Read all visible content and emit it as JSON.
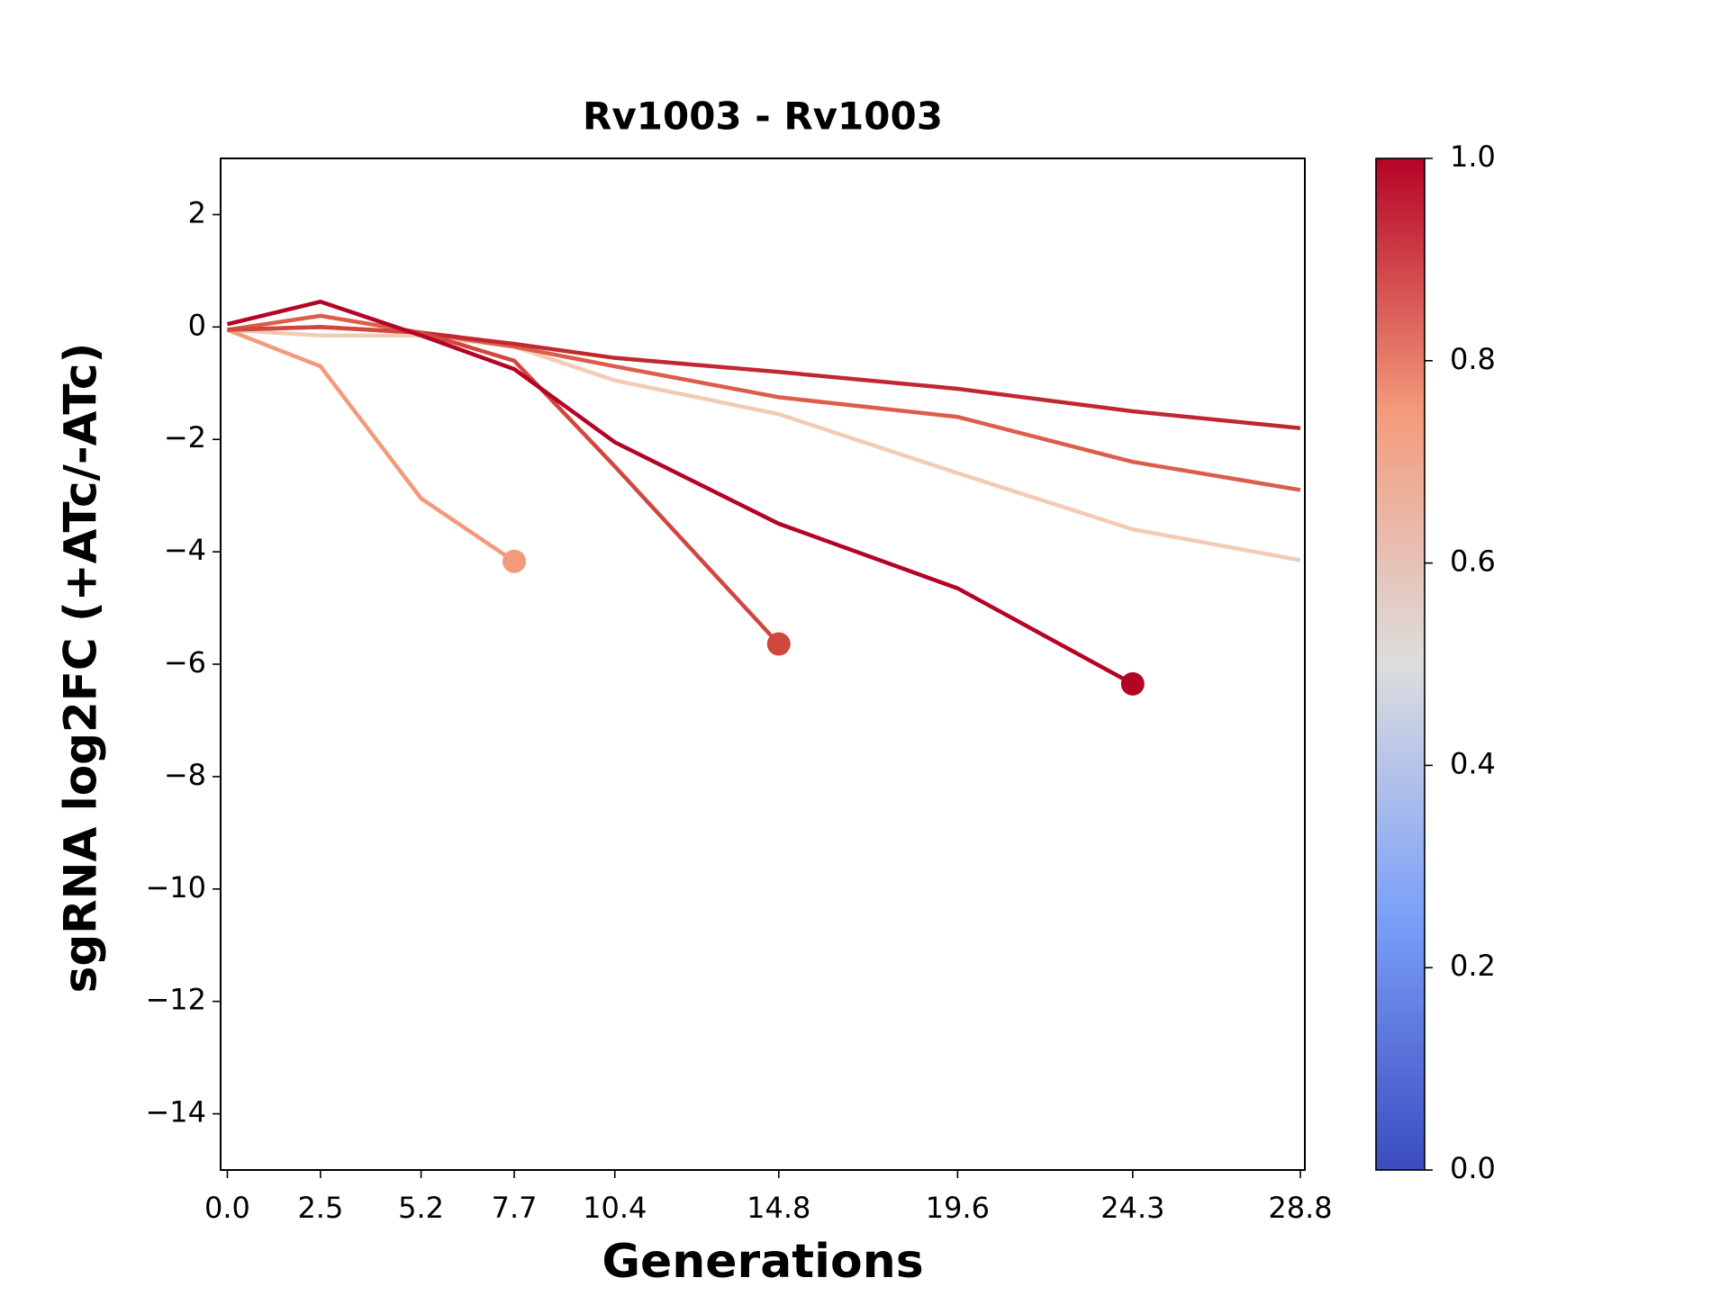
{
  "chart_data": {
    "type": "line",
    "title": "Rv1003 - Rv1003",
    "xlabel": "Generations",
    "ylabel": "sgRNA log2FC (+ATc/-ATc)",
    "x": [
      0,
      2.5,
      5.2,
      7.7,
      10.4,
      14.8,
      19.6,
      24.3,
      28.8
    ],
    "series": [
      {
        "color": "#f2cbb7",
        "values": [
          -0.05,
          -0.15,
          -0.15,
          -0.35,
          -0.95,
          -1.55,
          -2.6,
          -3.6,
          -4.15
        ]
      },
      {
        "color": "#dc5d4a",
        "values": [
          -0.05,
          0.2,
          -0.1,
          -0.35,
          -0.7,
          -1.25,
          -1.6,
          -2.4,
          -2.9
        ]
      },
      {
        "color": "#c0282f",
        "values": [
          -0.05,
          0.0,
          -0.1,
          -0.3,
          -0.55,
          -0.8,
          -1.1,
          -1.5,
          -1.8
        ]
      },
      {
        "color": "#f39a7b",
        "values": [
          -0.05,
          -0.7,
          -3.05,
          -4.17,
          null,
          null,
          null,
          null,
          null
        ]
      },
      {
        "color": "#d0473d",
        "values": [
          -0.05,
          0.0,
          -0.1,
          -0.6,
          -2.48,
          -5.64,
          null,
          null,
          null
        ]
      },
      {
        "color": "#b40426",
        "values": [
          0.05,
          0.45,
          -0.15,
          -0.75,
          -2.05,
          -3.5,
          -4.65,
          -6.35,
          null
        ]
      }
    ],
    "xlim": [
      -0.18,
      28.92
    ],
    "xticks": [
      {
        "value": 0,
        "label": "0.0"
      },
      2.5,
      5.2,
      7.7,
      10.4,
      14.8,
      19.6,
      24.3,
      28.8
    ],
    "ylim": [
      -15,
      3
    ],
    "yticks": [
      {
        "value": -14,
        "label": "−14"
      },
      {
        "value": -12,
        "label": "−12"
      },
      {
        "value": -10,
        "label": "−10"
      },
      {
        "value": -8,
        "label": "−8"
      },
      {
        "value": -6,
        "label": "−6"
      },
      {
        "value": -4,
        "label": "−4"
      },
      {
        "value": -2,
        "label": "−2"
      },
      0,
      2
    ],
    "colorbar": {
      "ylim": [
        0,
        1
      ],
      "yticks": [
        {
          "value": 0,
          "label": "0.0"
        },
        0.2,
        0.4,
        0.6,
        0.8,
        {
          "value": 1,
          "label": "1.0"
        }
      ]
    }
  }
}
